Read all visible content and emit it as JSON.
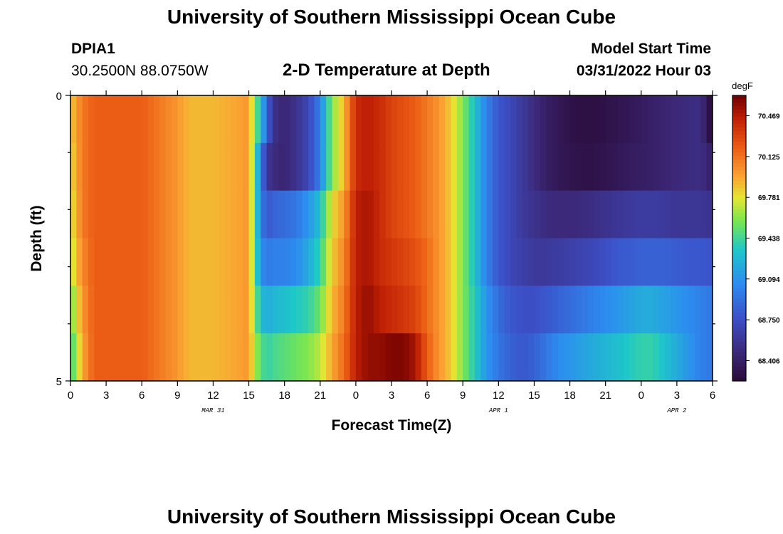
{
  "header": {
    "title": "University of Southern Mississippi Ocean Cube",
    "station_id": "DPIA1",
    "coords": "30.2500N  88.0750W",
    "plot_title": "2-D Temperature at Depth",
    "model_start_label": "Model Start Time",
    "model_start_value": "03/31/2022 Hour 03"
  },
  "footer": {
    "title": "University of Southern Mississippi Ocean Cube"
  },
  "chart_data": {
    "type": "heatmap",
    "title": "2-D Temperature at Depth",
    "xlabel": "Forecast Time(Z)",
    "ylabel": "Depth (ft)",
    "x_tick_labels": [
      "0",
      "3",
      "6",
      "9",
      "12",
      "15",
      "18",
      "21",
      "0",
      "3",
      "6",
      "9",
      "12",
      "15",
      "18",
      "21",
      "0",
      "3",
      "6"
    ],
    "date_labels": [
      {
        "text": "MAR 31",
        "at_hour": 12
      },
      {
        "text": "APR 1",
        "at_hour": 36
      },
      {
        "text": "APR 2",
        "at_hour": 51
      }
    ],
    "x_range_hours": [
      0,
      54
    ],
    "y_tick_labels": [
      "0",
      "5"
    ],
    "ylim": [
      0,
      5
    ],
    "colorbar": {
      "unit": "degF",
      "labels": [
        "70.469",
        "70.125",
        "69.781",
        "69.438",
        "69.094",
        "68.750",
        "68.406"
      ],
      "range": [
        68.235,
        70.64
      ]
    },
    "depth_levels": 5,
    "time_key_hours": [
      0,
      1,
      2,
      3,
      6,
      9,
      10,
      12,
      14,
      15,
      15.5,
      16,
      16.5,
      17,
      18,
      19,
      20,
      21,
      22,
      23,
      24,
      25,
      26,
      27,
      28,
      29,
      30,
      31,
      32,
      33,
      34,
      35,
      36,
      37,
      38,
      39,
      40,
      41,
      42,
      43,
      44,
      45,
      46,
      47,
      48,
      49,
      50,
      51,
      52,
      53,
      54
    ],
    "values_by_depth": [
      [
        69.85,
        70.1,
        70.2,
        70.2,
        70.2,
        70.0,
        69.9,
        69.9,
        69.95,
        70.0,
        69.6,
        69.3,
        68.9,
        68.55,
        68.45,
        68.55,
        68.7,
        69.0,
        69.6,
        69.9,
        70.4,
        70.45,
        70.4,
        70.3,
        70.25,
        70.2,
        70.1,
        70.0,
        69.85,
        69.6,
        69.3,
        69.0,
        68.8,
        68.7,
        68.6,
        68.5,
        68.4,
        68.35,
        68.3,
        68.28,
        68.28,
        68.3,
        68.32,
        68.35,
        68.38,
        68.42,
        68.45,
        68.48,
        68.5,
        68.52,
        68.2
      ],
      [
        69.8,
        70.1,
        70.2,
        70.2,
        70.2,
        70.0,
        69.9,
        69.9,
        69.95,
        70.0,
        69.5,
        69.0,
        68.6,
        68.5,
        68.45,
        68.55,
        68.7,
        69.0,
        69.6,
        69.9,
        70.4,
        70.45,
        70.4,
        70.3,
        70.25,
        70.2,
        70.1,
        70.0,
        69.85,
        69.6,
        69.3,
        69.0,
        68.8,
        68.7,
        68.6,
        68.5,
        68.4,
        68.35,
        68.32,
        68.3,
        68.3,
        68.32,
        68.35,
        68.38,
        68.4,
        68.42,
        68.45,
        68.48,
        68.5,
        68.52,
        68.4
      ],
      [
        69.75,
        70.1,
        70.2,
        70.2,
        70.2,
        70.0,
        69.9,
        69.9,
        69.95,
        70.0,
        69.5,
        69.0,
        68.8,
        68.85,
        68.9,
        68.95,
        69.1,
        69.3,
        69.8,
        70.0,
        70.45,
        70.5,
        70.4,
        70.3,
        70.25,
        70.2,
        70.1,
        70.0,
        69.85,
        69.6,
        69.3,
        69.0,
        68.8,
        68.7,
        68.6,
        68.55,
        68.5,
        68.48,
        68.48,
        68.5,
        68.52,
        68.55,
        68.58,
        68.6,
        68.62,
        68.62,
        68.6,
        68.58,
        68.58,
        68.58,
        68.55
      ],
      [
        69.7,
        70.05,
        70.2,
        70.2,
        70.2,
        70.0,
        69.9,
        69.9,
        69.95,
        70.0,
        69.5,
        69.1,
        68.95,
        69.0,
        69.0,
        69.05,
        69.2,
        69.4,
        69.85,
        70.05,
        70.45,
        70.5,
        70.4,
        70.35,
        70.3,
        70.25,
        70.15,
        70.0,
        69.85,
        69.6,
        69.3,
        69.0,
        68.8,
        68.7,
        68.65,
        68.6,
        68.6,
        68.62,
        68.65,
        68.68,
        68.7,
        68.75,
        68.8,
        68.82,
        68.85,
        68.85,
        68.85,
        68.82,
        68.8,
        68.8,
        68.78
      ],
      [
        69.55,
        70.0,
        70.2,
        70.2,
        70.2,
        70.0,
        69.9,
        69.9,
        69.95,
        70.0,
        69.6,
        69.3,
        69.2,
        69.25,
        69.3,
        69.35,
        69.4,
        69.55,
        69.9,
        70.1,
        70.45,
        70.55,
        70.45,
        70.4,
        70.35,
        70.3,
        70.15,
        70.0,
        69.85,
        69.6,
        69.35,
        69.1,
        68.9,
        68.8,
        68.75,
        68.75,
        68.8,
        68.85,
        68.9,
        68.95,
        69.0,
        69.05,
        69.1,
        69.15,
        69.2,
        69.2,
        69.15,
        69.1,
        69.05,
        69.0,
        68.95
      ],
      [
        69.4,
        69.95,
        70.2,
        70.2,
        70.2,
        70.0,
        69.9,
        69.9,
        69.95,
        70.0,
        69.7,
        69.5,
        69.4,
        69.45,
        69.5,
        69.55,
        69.6,
        69.7,
        69.95,
        70.15,
        70.45,
        70.55,
        70.55,
        70.6,
        70.6,
        70.5,
        70.2,
        70.0,
        69.85,
        69.6,
        69.35,
        69.1,
        68.95,
        68.85,
        68.8,
        68.85,
        68.95,
        69.05,
        69.1,
        69.15,
        69.2,
        69.25,
        69.3,
        69.35,
        69.4,
        69.4,
        69.3,
        69.2,
        69.1,
        69.0,
        68.95
      ]
    ]
  }
}
